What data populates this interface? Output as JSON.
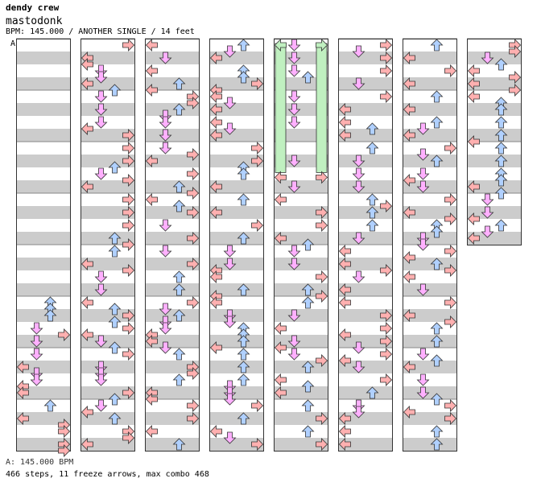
{
  "header": {
    "artist": "dendy crew",
    "title": "mastodonk",
    "info": "BPM: 145.000 / ANOTHER SINGLE / 14 feet",
    "section_marker": "A"
  },
  "footer": {
    "bpm_line": "A: 145.000 BPM",
    "stats_line": "466 steps, 11 freeze arrows, max combo 468"
  },
  "colors": {
    "left": "#ffb0b0",
    "down": "#ffb0ff",
    "up": "#b0d0ff",
    "right": "#ffb0b0",
    "freeze": "#c0f0c0",
    "stripe": "#cccccc"
  },
  "chart": {
    "lanes": [
      "left",
      "down",
      "up",
      "right"
    ],
    "measures_per_column": 8,
    "column_count": 8,
    "total_measures": 60,
    "freeze_arrows": [
      {
        "column": 4,
        "lane": "left",
        "start_measure": 0,
        "end_measure": 2.6
      },
      {
        "column": 4,
        "lane": "right",
        "start_measure": 0,
        "end_measure": 2.6
      }
    ]
  }
}
